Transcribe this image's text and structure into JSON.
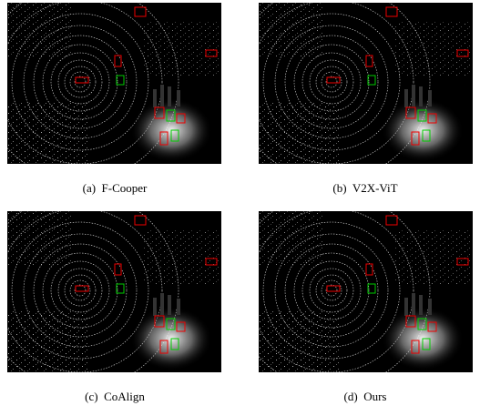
{
  "figure": {
    "panels": [
      {
        "caption": "(a)  F-Cooper"
      },
      {
        "caption": "(b)  V2X-ViT"
      },
      {
        "caption": "(c)  CoAlign"
      },
      {
        "caption": "(d)  Ours"
      }
    ]
  }
}
